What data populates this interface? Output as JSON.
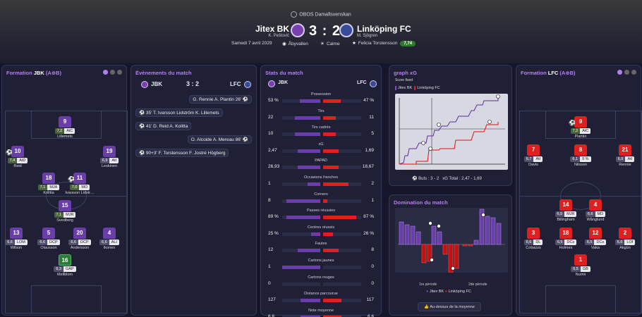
{
  "header": {
    "competition": "OBOS Damallsvenskan",
    "home_team": "Jitex BK",
    "home_coach": "K. Pešlović",
    "away_team": "Linköping FC",
    "away_coach": "M. Sjögren",
    "score": "3 : 2",
    "date": "Samedi 7 avril 2029",
    "stadium": "Åbyvallen",
    "weather": "Calme",
    "potm": "Felicia Torstensson",
    "potm_rating": "7,74"
  },
  "formation_home": {
    "title_prefix": "Formation ",
    "title_team": "JBK",
    "title_suffix": " (A⊕B)",
    "players": [
      {
        "num": "9",
        "rating": "7,2",
        "pos": "AtC",
        "name": "Lillemets",
        "kit": "p"
      },
      {
        "num": "10",
        "rating": "7,4",
        "pos": "AtD",
        "name": "Reid",
        "kit": "p"
      },
      {
        "num": "19",
        "rating": "6,9",
        "pos": "AtI",
        "name": "Leskinen",
        "kit": "p"
      },
      {
        "num": "18",
        "rating": "7,1",
        "pos": "MJA",
        "name": "Kolitta",
        "kit": "p"
      },
      {
        "num": "11",
        "rating": "7,0",
        "pos": "MO",
        "name": "Ivarsson Lidstr…",
        "kit": "p"
      },
      {
        "num": "15",
        "rating": "7,1",
        "pos": "MJR",
        "name": "Svedberg",
        "kit": "p"
      },
      {
        "num": "13",
        "rating": "6,6",
        "pos": "LOM",
        "name": "Wilson",
        "kit": "p"
      },
      {
        "num": "5",
        "rating": "6,6",
        "pos": "DCP",
        "name": "Olausson",
        "kit": "p"
      },
      {
        "num": "20",
        "rating": "6,6",
        "pos": "DCP",
        "name": "Andersson",
        "kit": "p"
      },
      {
        "num": "4",
        "rating": "6,6",
        "pos": "ALI",
        "name": "Ikonen",
        "kit": "p"
      },
      {
        "num": "16",
        "rating": "6,3",
        "pos": "GAP",
        "name": "Mellblom",
        "kit": "g"
      }
    ]
  },
  "formation_away": {
    "title_prefix": "Formation ",
    "title_team": "LFC",
    "title_suffix": " (A⊕B)",
    "players": [
      {
        "num": "9",
        "rating": "7,2",
        "pos": "AtC",
        "name": "Plantin",
        "kit": "r"
      },
      {
        "num": "7",
        "rating": "6,7",
        "pos": "AtI",
        "name": "Davis",
        "kit": "r"
      },
      {
        "num": "8",
        "rating": "6,1",
        "pos": "9 %",
        "name": "Nilsson",
        "kit": "r"
      },
      {
        "num": "21",
        "rating": "6,9",
        "pos": "AtI",
        "name": "Rennie",
        "kit": "r"
      },
      {
        "num": "14",
        "rating": "6,5",
        "pos": "MJR",
        "name": "Billingham",
        "kit": "r"
      },
      {
        "num": "4",
        "rating": "6,6",
        "pos": "MD",
        "name": "Wånglund",
        "kit": "r"
      },
      {
        "num": "3",
        "rating": "6,6",
        "pos": "DL",
        "name": "Cobazzs",
        "kit": "r"
      },
      {
        "num": "18",
        "rating": "6,5",
        "pos": "DCs",
        "name": "Holmes",
        "kit": "r"
      },
      {
        "num": "12",
        "rating": "6,5",
        "pos": "DCs",
        "name": "Vaka",
        "kit": "r"
      },
      {
        "num": "2",
        "rating": "6,6",
        "pos": "LOf",
        "name": "Akgün",
        "kit": "r"
      },
      {
        "num": "1",
        "rating": "6,5",
        "pos": "GB",
        "name": "Nurmi",
        "kit": "r"
      }
    ]
  },
  "events": {
    "title": "Évènements du match",
    "home": "JBK",
    "away": "LFC",
    "score": "3 : 2",
    "items": [
      {
        "text": "G. Rennie  A. Plantin  26'",
        "side": "away"
      },
      {
        "text": "35'  T. Ivarsson Lidström  K. Lillemets",
        "side": "home"
      },
      {
        "text": "41'  D. Reid  A. Kolitta",
        "side": "home"
      },
      {
        "text": "O. Alcoide  A. Mereau  86'",
        "side": "away"
      },
      {
        "text": "90+3'  F. Torstensson  F. Jostré Högberg",
        "side": "home"
      }
    ]
  },
  "stats": {
    "title": "Stats du match",
    "home": "JBK",
    "away": "LFC",
    "rows": [
      {
        "label": "Possession",
        "home": "53 %",
        "away": "47 %",
        "h": 0.53,
        "a": 0.47
      },
      {
        "label": "Tirs",
        "home": "22",
        "away": "11",
        "h": 0.67,
        "a": 0.33
      },
      {
        "label": "Tirs cadrés",
        "home": "10",
        "away": "5",
        "h": 0.67,
        "a": 0.33
      },
      {
        "label": "xG",
        "home": "2,47",
        "away": "1,69",
        "h": 0.59,
        "a": 0.41
      },
      {
        "label": "PAPAD",
        "home": "26,93",
        "away": "18,67",
        "h": 0.59,
        "a": 0.41
      },
      {
        "label": "Occasions franches",
        "home": "1",
        "away": "2",
        "h": 0.33,
        "a": 0.67
      },
      {
        "label": "Corners",
        "home": "8",
        "away": "1",
        "h": 0.89,
        "a": 0.11
      },
      {
        "label": "Passes réussies",
        "home": "89 %",
        "away": "87 %",
        "h": 0.89,
        "a": 0.87
      },
      {
        "label": "Centres réussis",
        "home": "25 %",
        "away": "26 %",
        "h": 0.25,
        "a": 0.26
      },
      {
        "label": "Fautes",
        "home": "12",
        "away": "8",
        "h": 0.6,
        "a": 0.4
      },
      {
        "label": "Cartons jaunes",
        "home": "1",
        "away": "0",
        "h": 1.0,
        "a": 0.0
      },
      {
        "label": "Cartons rouges",
        "home": "0",
        "away": "0",
        "h": 0.0,
        "a": 0.0
      },
      {
        "label": "Distance parcourue",
        "home": "127",
        "away": "117",
        "h": 0.52,
        "a": 0.48
      },
      {
        "label": "Note moyenne",
        "home": "6,8",
        "away": "6,6",
        "h": 0.51,
        "a": 0.49
      }
    ]
  },
  "xg": {
    "title": "graph xG",
    "subtitle": "Score fixed",
    "legend_home": "Jitex BK",
    "legend_away": "Linköping FC",
    "goals_label": "Buts : 3 - 2",
    "xg_label": "xG Total : 2,47 - 1,69"
  },
  "domination": {
    "title": "Domination du match",
    "first_half": "1re période",
    "second_half": "2de période",
    "legend_home": "Jitex BK",
    "legend_away": "Linköping FC",
    "button": "Au-dessus de la moyenne"
  },
  "colors": {
    "home": "#6a3ea8",
    "away": "#e02020",
    "accent": "#b57ef0"
  }
}
